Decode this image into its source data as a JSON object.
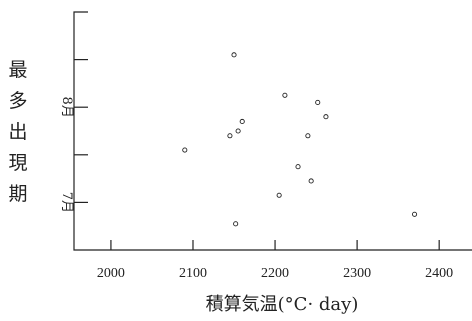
{
  "chart_data": {
    "type": "scatter",
    "title": "",
    "xlabel": "積算気温(°C· day)",
    "ylabel": "最多出現期",
    "xlim": [
      1955,
      2440
    ],
    "xticks": [
      2000,
      2100,
      2200,
      2300,
      2400
    ],
    "xtick_labels": [
      "2000",
      "2100",
      "2200",
      "2300",
      "2400"
    ],
    "ylim": [
      0,
      5
    ],
    "yticks": [
      1,
      2,
      3,
      4
    ],
    "ytick_labels": [
      "7月",
      "",
      "8月",
      ""
    ],
    "grid": false,
    "legend": "none",
    "points": [
      {
        "x": 2090,
        "y": 2.1
      },
      {
        "x": 2145,
        "y": 2.4
      },
      {
        "x": 2150,
        "y": 4.1
      },
      {
        "x": 2152,
        "y": 0.55
      },
      {
        "x": 2155,
        "y": 2.5
      },
      {
        "x": 2160,
        "y": 2.7
      },
      {
        "x": 2205,
        "y": 1.15
      },
      {
        "x": 2212,
        "y": 3.25
      },
      {
        "x": 2228,
        "y": 1.75
      },
      {
        "x": 2240,
        "y": 2.4
      },
      {
        "x": 2244,
        "y": 1.45
      },
      {
        "x": 2252,
        "y": 3.1
      },
      {
        "x": 2262,
        "y": 2.8
      },
      {
        "x": 2370,
        "y": 0.75
      }
    ]
  }
}
